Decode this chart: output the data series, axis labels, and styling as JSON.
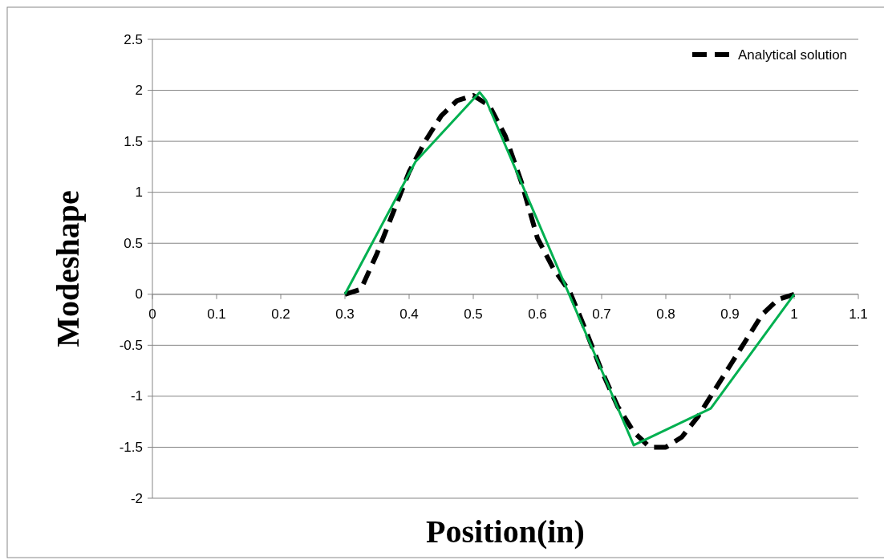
{
  "chart_data": {
    "type": "line",
    "xlabel": "Position(in)",
    "ylabel": "Modeshape",
    "xlim": [
      0,
      1.1
    ],
    "xticks": [
      0,
      0.1,
      0.2,
      0.3,
      0.4,
      0.5,
      0.6,
      0.7,
      0.8,
      0.9,
      1,
      1.1
    ],
    "ylim": [
      -2,
      2.5
    ],
    "yticks": [
      -2,
      -1.5,
      -1,
      -0.5,
      0,
      0.5,
      1,
      1.5,
      2,
      2.5
    ],
    "grid": "y",
    "legend": "top right",
    "series": [
      {
        "name": "Analytical solution",
        "color": "#000000",
        "line_style": "dashed",
        "x": [
          0.3,
          0.325,
          0.35,
          0.375,
          0.4,
          0.425,
          0.45,
          0.475,
          0.5,
          0.525,
          0.55,
          0.575,
          0.6,
          0.625,
          0.65,
          0.675,
          0.7,
          0.725,
          0.75,
          0.775,
          0.8,
          0.825,
          0.85,
          0.875,
          0.9,
          0.925,
          0.95,
          0.975,
          1
        ],
        "values": [
          0,
          0.05,
          0.4,
          0.8,
          1.2,
          1.5,
          1.75,
          1.9,
          1.95,
          1.85,
          1.55,
          1.1,
          0.55,
          0.25,
          0.03,
          -0.35,
          -0.75,
          -1.1,
          -1.35,
          -1.5,
          -1.5,
          -1.4,
          -1.2,
          -0.95,
          -0.7,
          -0.45,
          -0.2,
          -0.05,
          0
        ]
      },
      {
        "color": "#00b050",
        "line_style": "solid",
        "x": [
          0.3,
          0.41,
          0.51,
          0.52,
          0.75,
          0.87,
          1
        ],
        "values": [
          0,
          1.3,
          1.98,
          1.9,
          -1.48,
          -1.12,
          0
        ]
      }
    ]
  }
}
